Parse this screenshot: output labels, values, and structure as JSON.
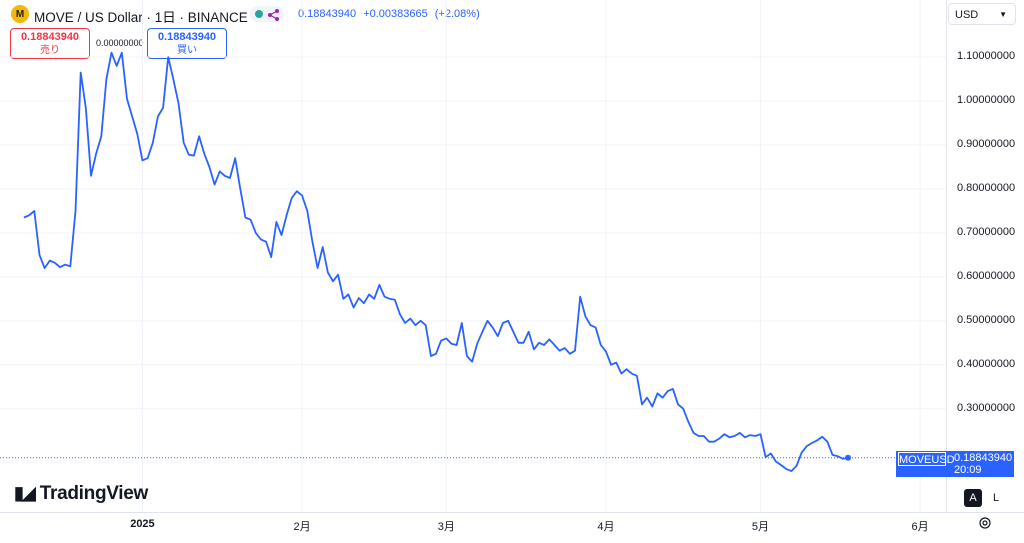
{
  "header": {
    "symbol_title": "MOVE / US Dollar · 1日 · BINANCE",
    "logo_glyph": "M",
    "quote_last": "0.18843940",
    "quote_change": "+0.00383665",
    "quote_change_pct": "(+2.08%)",
    "status_color": "#26a69a",
    "accent_color": "#2962ff"
  },
  "trade": {
    "sell_price": "0.18843940",
    "sell_label": "売り",
    "spread": "0.00000000",
    "buy_price": "0.18843940",
    "buy_label": "買い"
  },
  "currency_select": "USD",
  "last_price_tag": {
    "symbol": "MOVEUSD",
    "price": "0.18843940",
    "countdown": "20:09",
    "color": "#2962ff"
  },
  "branding": {
    "name": "TradingView"
  },
  "axis_buttons": {
    "auto": "A",
    "log": "L"
  },
  "chart_data": {
    "type": "line",
    "title": "MOVE / US Dollar · 1日 · BINANCE",
    "series": [
      {
        "name": "MOVEUSD",
        "color": "#2962ff",
        "values": [
          0.735,
          0.74,
          0.75,
          0.65,
          0.62,
          0.637,
          0.632,
          0.622,
          0.628,
          0.624,
          0.75,
          1.065,
          0.985,
          0.83,
          0.88,
          0.92,
          1.05,
          1.11,
          1.08,
          1.11,
          1.005,
          0.965,
          0.925,
          0.865,
          0.87,
          0.905,
          0.965,
          0.985,
          1.1,
          1.05,
          0.995,
          0.905,
          0.878,
          0.876,
          0.92,
          0.88,
          0.85,
          0.81,
          0.84,
          0.83,
          0.825,
          0.87,
          0.8,
          0.735,
          0.73,
          0.7,
          0.685,
          0.68,
          0.645,
          0.725,
          0.695,
          0.74,
          0.78,
          0.795,
          0.785,
          0.75,
          0.68,
          0.62,
          0.668,
          0.61,
          0.59,
          0.605,
          0.55,
          0.56,
          0.53,
          0.552,
          0.54,
          0.56,
          0.55,
          0.582,
          0.555,
          0.55,
          0.548,
          0.515,
          0.495,
          0.505,
          0.49,
          0.5,
          0.49,
          0.42,
          0.425,
          0.455,
          0.46,
          0.448,
          0.445,
          0.495,
          0.42,
          0.407,
          0.448,
          0.475,
          0.5,
          0.485,
          0.465,
          0.495,
          0.5,
          0.475,
          0.45,
          0.45,
          0.475,
          0.435,
          0.45,
          0.445,
          0.458,
          0.445,
          0.432,
          0.438,
          0.425,
          0.432,
          0.555,
          0.51,
          0.49,
          0.485,
          0.445,
          0.43,
          0.4,
          0.405,
          0.38,
          0.39,
          0.38,
          0.375,
          0.31,
          0.325,
          0.305,
          0.335,
          0.325,
          0.34,
          0.345,
          0.31,
          0.3,
          0.27,
          0.245,
          0.238,
          0.238,
          0.225,
          0.225,
          0.232,
          0.242,
          0.235,
          0.238,
          0.245,
          0.235,
          0.24,
          0.238,
          0.242,
          0.19,
          0.198,
          0.18,
          0.172,
          0.163,
          0.158,
          0.17,
          0.2,
          0.215,
          0.222,
          0.228,
          0.236,
          0.225,
          0.195,
          0.192,
          0.186,
          0.188
        ]
      }
    ],
    "x_start": "2024-12-09",
    "x_end": "2025-05-18",
    "x_ticks": [
      {
        "date": "2025-01-01",
        "label": "2025"
      },
      {
        "date": "2025-02-01",
        "label": "2月"
      },
      {
        "date": "2025-03-01",
        "label": "3月"
      },
      {
        "date": "2025-04-01",
        "label": "4月"
      },
      {
        "date": "2025-05-01",
        "label": "5月"
      },
      {
        "date": "2025-06-01",
        "label": "6月"
      }
    ],
    "y_ticks": [
      "1.10000000",
      "1.00000000",
      "0.90000000",
      "0.80000000",
      "0.70000000",
      "0.60000000",
      "0.50000000",
      "0.40000000",
      "0.30000000"
    ],
    "ylim": [
      0.065,
      1.23
    ],
    "ylabel": "",
    "xlabel": "",
    "grid": true,
    "last_value": 0.1884394
  }
}
